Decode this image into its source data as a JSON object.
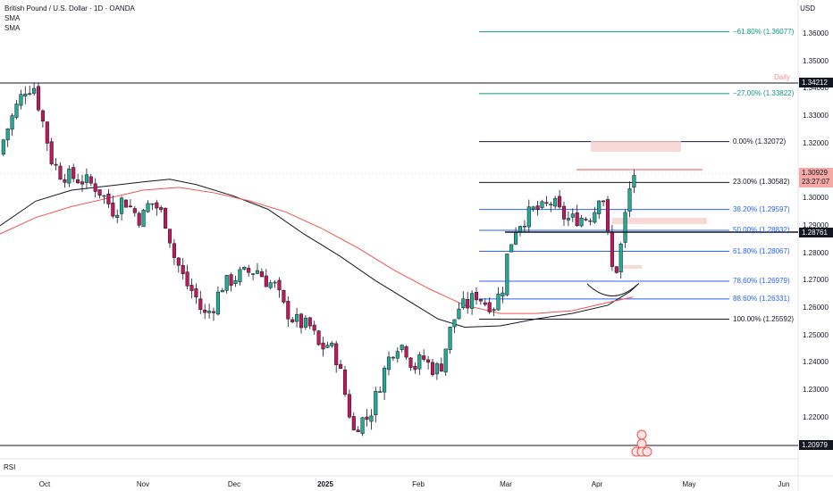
{
  "header": {
    "symbol": "British Pound / U.S. Dollar · 1D · OANDA",
    "sma1": "SMA",
    "sma2": "SMA",
    "currency": "USD",
    "daily_tag": "Daily"
  },
  "rsi_label": "RSI",
  "price_axis": [
    "1.36000",
    "1.35000",
    "1.34000",
    "1.33000",
    "1.32000",
    "1.31000",
    "1.30000",
    "1.29000",
    "1.28000",
    "1.27000",
    "1.26000",
    "1.25000",
    "1.24000",
    "1.23000",
    "1.22000",
    "1.21000"
  ],
  "price_tags": {
    "high_line": "1.34212",
    "current_price": "1.30929",
    "countdown": "23:27:07",
    "support_line": "1.28761",
    "low_line": "1.20979"
  },
  "time_axis": [
    "Oct",
    "Nov",
    "Dec",
    "2025",
    "Feb",
    "Mar",
    "Apr",
    "May",
    "Jun"
  ],
  "fib_levels": [
    {
      "label": "−61.80% (1.36077)",
      "price": 1.36077,
      "color": "#089981"
    },
    {
      "label": "−27.00% (1.33822)",
      "price": 1.33822,
      "color": "#089981"
    },
    {
      "label": "0.00% (1.32072)",
      "price": 1.32072,
      "color": "#131722"
    },
    {
      "label": "23.00% (1.30582)",
      "price": 1.30582,
      "color": "#131722"
    },
    {
      "label": "38.20% (1.29597)",
      "price": 1.29597,
      "color": "#2962ff"
    },
    {
      "label": "50.00% (1.28832)",
      "price": 1.28832,
      "color": "#2962ff"
    },
    {
      "label": "61.80% (1.28067)",
      "price": 1.28067,
      "color": "#2962ff"
    },
    {
      "label": "78.60% (1.26979)",
      "price": 1.26979,
      "color": "#2962ff"
    },
    {
      "label": "88.60% (1.26331)",
      "price": 1.26331,
      "color": "#2962ff"
    },
    {
      "label": "100.00% (1.25592)",
      "price": 1.25592,
      "color": "#131722"
    }
  ],
  "colors": {
    "up": "#22ab94",
    "down": "#c2185b",
    "sma_black": "#131722",
    "sma_red": "#ef5350",
    "fib_green": "#089981",
    "fib_blue": "#2962ff"
  },
  "chart_data": {
    "type": "candlestick",
    "title": "British Pound / U.S. Dollar · 1D · OANDA",
    "ylim": [
      1.207,
      1.369
    ],
    "x_ticks": [
      "Oct",
      "Nov",
      "Dec",
      "2025",
      "Feb",
      "Mar",
      "Apr",
      "May",
      "Jun"
    ],
    "series": [
      {
        "name": "SMA",
        "values": "slow moving average (black)"
      },
      {
        "name": "SMA",
        "values": "moving average (red)"
      }
    ],
    "horizontal_levels": [
      1.34212,
      1.28761,
      1.20979
    ],
    "last_price": 1.30929
  }
}
